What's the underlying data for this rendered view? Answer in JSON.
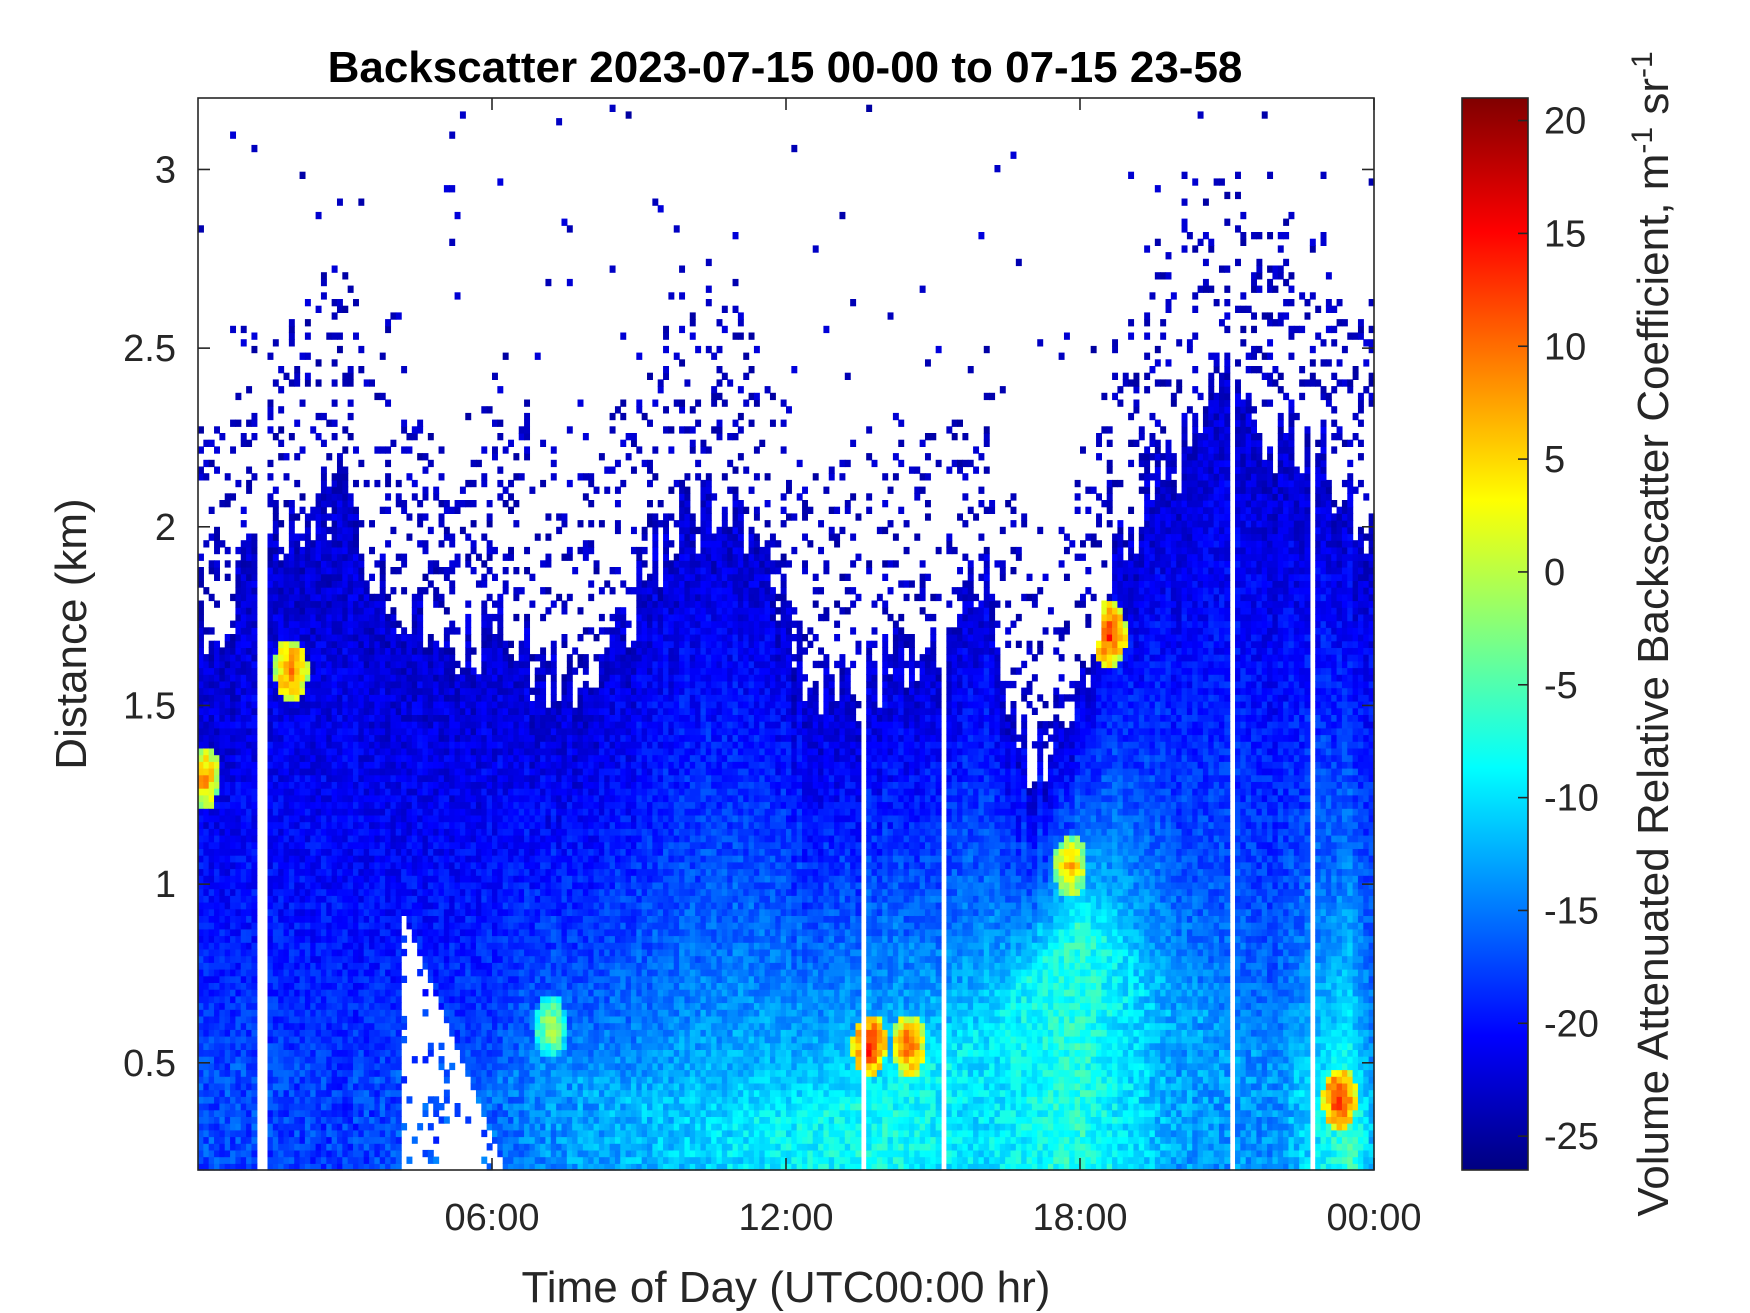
{
  "chart_data": {
    "type": "heatmap",
    "title": "Backscatter 2023-07-15 00-00 to 07-15 23-58",
    "xlabel": "Time of Day (UTC00:00 hr)",
    "ylabel": "Distance (km)",
    "colorbar_label": "Volume Attenuated Relative Backscatter Coefficient, m",
    "colorbar_unit_exp1": "-1",
    "colorbar_unit_mid": " sr",
    "colorbar_unit_exp2": "-1",
    "colormap": "jet",
    "xlim_hours": [
      0,
      24
    ],
    "ylim_km": [
      0.2,
      3.2
    ],
    "clim": [
      -26.5,
      21
    ],
    "x_ticks": [
      {
        "hour": 6,
        "label": "06:00"
      },
      {
        "hour": 12,
        "label": "12:00"
      },
      {
        "hour": 18,
        "label": "18:00"
      },
      {
        "hour": 24,
        "label": "00:00"
      }
    ],
    "y_ticks": [
      {
        "value": 0.5,
        "label": "0.5"
      },
      {
        "value": 1,
        "label": "1"
      },
      {
        "value": 1.5,
        "label": "1.5"
      },
      {
        "value": 2,
        "label": "2"
      },
      {
        "value": 2.5,
        "label": "2.5"
      },
      {
        "value": 3,
        "label": "3"
      }
    ],
    "colorbar_ticks": [
      {
        "value": -25,
        "label": "-25"
      },
      {
        "value": -20,
        "label": "-20"
      },
      {
        "value": -15,
        "label": "-15"
      },
      {
        "value": -10,
        "label": "-10"
      },
      {
        "value": -5,
        "label": "-5"
      },
      {
        "value": 0,
        "label": "0"
      },
      {
        "value": 5,
        "label": "5"
      },
      {
        "value": 10,
        "label": "10"
      },
      {
        "value": 15,
        "label": "15"
      },
      {
        "value": 20,
        "label": "20"
      }
    ],
    "signal_top_km": [
      [
        0,
        1.75
      ],
      [
        0.5,
        1.75
      ],
      [
        1,
        1.9
      ],
      [
        2,
        2.0
      ],
      [
        3,
        2.1
      ],
      [
        3.5,
        1.9
      ],
      [
        4,
        1.8
      ],
      [
        5,
        1.75
      ],
      [
        5.5,
        1.65
      ],
      [
        6,
        1.75
      ],
      [
        7,
        1.6
      ],
      [
        8,
        1.5
      ],
      [
        9,
        1.85
      ],
      [
        10,
        2.05
      ],
      [
        11,
        2.0
      ],
      [
        11.5,
        1.9
      ],
      [
        12,
        1.7
      ],
      [
        13,
        1.5
      ],
      [
        14,
        1.6
      ],
      [
        15,
        1.7
      ],
      [
        16,
        1.9
      ],
      [
        17,
        1.3
      ],
      [
        17.5,
        1.4
      ],
      [
        18,
        1.6
      ],
      [
        19,
        2.0
      ],
      [
        20,
        2.2
      ],
      [
        21,
        2.4
      ],
      [
        22,
        2.25
      ],
      [
        23,
        2.2
      ],
      [
        24,
        2.0
      ]
    ],
    "clear_gaps": [
      {
        "hour_start": 1.25,
        "hour_end": 1.4
      },
      {
        "hour_start": 13.55,
        "hour_end": 13.65
      },
      {
        "hour_start": 15.15,
        "hour_end": 15.25
      },
      {
        "hour_start": 21.1,
        "hour_end": 21.2
      },
      {
        "hour_start": 22.65,
        "hour_end": 22.8,
        "max_km": 2.3
      }
    ],
    "clear_region": {
      "hour_start": 4.1,
      "hour_end": 6.3,
      "max_km_at_start": 0.95,
      "max_km_at_end": 0.2
    },
    "surface_layer": [
      [
        0,
        0.5,
        -17
      ],
      [
        3,
        0.5,
        -18
      ],
      [
        6,
        0.45,
        -16
      ],
      [
        7,
        0.5,
        -14
      ],
      [
        9,
        0.4,
        -12
      ],
      [
        12,
        0.35,
        -9
      ],
      [
        14,
        0.4,
        -8
      ],
      [
        16,
        0.6,
        -10
      ],
      [
        18,
        0.9,
        -7
      ],
      [
        20,
        0.7,
        -13
      ],
      [
        22,
        0.5,
        -14
      ],
      [
        23.5,
        0.4,
        -6
      ],
      [
        24,
        0.35,
        -12
      ]
    ],
    "hotspots": [
      {
        "hour": 7.2,
        "km": 0.6,
        "value": 2
      },
      {
        "hour": 13.7,
        "km": 0.55,
        "value": 15
      },
      {
        "hour": 14.5,
        "km": 0.55,
        "value": 12
      },
      {
        "hour": 17.8,
        "km": 1.05,
        "value": 8
      },
      {
        "hour": 18.6,
        "km": 1.7,
        "value": 14
      },
      {
        "hour": 23.3,
        "km": 0.4,
        "value": 15
      },
      {
        "hour": 1.9,
        "km": 1.6,
        "value": 12
      },
      {
        "hour": 0.1,
        "km": 1.3,
        "value": 10
      }
    ]
  }
}
